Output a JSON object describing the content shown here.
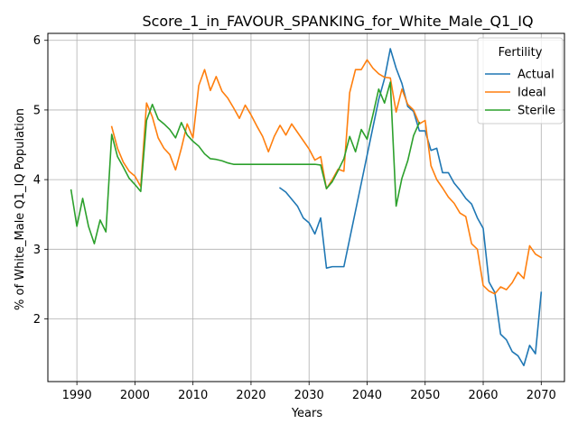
{
  "chart_data": {
    "type": "line",
    "title": "Score_1_in_FAVOUR_SPANKING_for_White_Male_Q1_IQ",
    "xlabel": "Years",
    "ylabel": "% of White_Male Q1_IQ Population",
    "xlim": [
      1985,
      2074
    ],
    "ylim": [
      1.1,
      6.1
    ],
    "xticks": [
      1990,
      2000,
      2010,
      2020,
      2030,
      2040,
      2050,
      2060,
      2070
    ],
    "yticks": [
      2,
      3,
      4,
      5,
      6
    ],
    "grid": true,
    "legend": {
      "title": "Fertility",
      "placement": "top-right"
    },
    "series": [
      {
        "name": "Actual",
        "color": "#1f77b4",
        "points": [
          [
            2025,
            3.88
          ],
          [
            2026,
            3.82
          ],
          [
            2027,
            3.72
          ],
          [
            2028,
            3.62
          ],
          [
            2029,
            3.45
          ],
          [
            2030,
            3.38
          ],
          [
            2031,
            3.22
          ],
          [
            2032,
            3.45
          ],
          [
            2033,
            2.73
          ],
          [
            2034,
            2.75
          ],
          [
            2035,
            2.75
          ],
          [
            2036,
            2.75
          ],
          [
            2037,
            3.15
          ],
          [
            2038,
            3.55
          ],
          [
            2039,
            3.95
          ],
          [
            2040,
            4.35
          ],
          [
            2041,
            4.75
          ],
          [
            2042,
            5.15
          ],
          [
            2043,
            5.45
          ],
          [
            2044,
            5.88
          ],
          [
            2045,
            5.6
          ],
          [
            2046,
            5.38
          ],
          [
            2047,
            5.05
          ],
          [
            2048,
            4.98
          ],
          [
            2049,
            4.7
          ],
          [
            2050,
            4.7
          ],
          [
            2051,
            4.42
          ],
          [
            2052,
            4.45
          ],
          [
            2053,
            4.1
          ],
          [
            2054,
            4.1
          ],
          [
            2055,
            3.95
          ],
          [
            2056,
            3.85
          ],
          [
            2057,
            3.73
          ],
          [
            2058,
            3.65
          ],
          [
            2059,
            3.45
          ],
          [
            2060,
            3.3
          ],
          [
            2061,
            2.53
          ],
          [
            2062,
            2.38
          ],
          [
            2063,
            1.78
          ],
          [
            2064,
            1.7
          ],
          [
            2065,
            1.53
          ],
          [
            2066,
            1.47
          ],
          [
            2067,
            1.33
          ],
          [
            2068,
            1.62
          ],
          [
            2069,
            1.5
          ],
          [
            2070,
            2.38
          ]
        ]
      },
      {
        "name": "Ideal",
        "color": "#ff7f0e",
        "points": [
          [
            1996,
            4.76
          ],
          [
            1997,
            4.45
          ],
          [
            1998,
            4.25
          ],
          [
            1999,
            4.12
          ],
          [
            2000,
            4.05
          ],
          [
            2001,
            3.9
          ],
          [
            2002,
            5.1
          ],
          [
            2003,
            4.9
          ],
          [
            2004,
            4.6
          ],
          [
            2005,
            4.45
          ],
          [
            2006,
            4.36
          ],
          [
            2007,
            4.14
          ],
          [
            2008,
            4.45
          ],
          [
            2009,
            4.8
          ],
          [
            2010,
            4.6
          ],
          [
            2011,
            5.35
          ],
          [
            2012,
            5.58
          ],
          [
            2013,
            5.28
          ],
          [
            2014,
            5.48
          ],
          [
            2015,
            5.27
          ],
          [
            2016,
            5.17
          ],
          [
            2017,
            5.03
          ],
          [
            2018,
            4.88
          ],
          [
            2019,
            5.07
          ],
          [
            2020,
            4.93
          ],
          [
            2021,
            4.77
          ],
          [
            2022,
            4.62
          ],
          [
            2023,
            4.4
          ],
          [
            2024,
            4.62
          ],
          [
            2025,
            4.78
          ],
          [
            2026,
            4.64
          ],
          [
            2027,
            4.8
          ],
          [
            2028,
            4.68
          ],
          [
            2029,
            4.56
          ],
          [
            2030,
            4.44
          ],
          [
            2031,
            4.28
          ],
          [
            2032,
            4.33
          ],
          [
            2033,
            3.87
          ],
          [
            2034,
            4.0
          ],
          [
            2035,
            4.15
          ],
          [
            2036,
            4.12
          ],
          [
            2037,
            5.25
          ],
          [
            2038,
            5.58
          ],
          [
            2039,
            5.58
          ],
          [
            2040,
            5.72
          ],
          [
            2041,
            5.6
          ],
          [
            2042,
            5.52
          ],
          [
            2043,
            5.47
          ],
          [
            2044,
            5.46
          ],
          [
            2045,
            4.97
          ],
          [
            2046,
            5.3
          ],
          [
            2047,
            5.08
          ],
          [
            2048,
            5.0
          ],
          [
            2049,
            4.8
          ],
          [
            2050,
            4.85
          ],
          [
            2051,
            4.2
          ],
          [
            2052,
            4.0
          ],
          [
            2053,
            3.88
          ],
          [
            2054,
            3.75
          ],
          [
            2055,
            3.66
          ],
          [
            2056,
            3.52
          ],
          [
            2057,
            3.47
          ],
          [
            2058,
            3.08
          ],
          [
            2059,
            3.0
          ],
          [
            2060,
            2.48
          ],
          [
            2061,
            2.4
          ],
          [
            2062,
            2.36
          ],
          [
            2063,
            2.46
          ],
          [
            2064,
            2.42
          ],
          [
            2065,
            2.52
          ],
          [
            2066,
            2.67
          ],
          [
            2067,
            2.58
          ],
          [
            2068,
            3.05
          ],
          [
            2069,
            2.93
          ],
          [
            2070,
            2.88
          ]
        ]
      },
      {
        "name": "Sterile",
        "color": "#2ca02c",
        "points": [
          [
            1989,
            3.85
          ],
          [
            1990,
            3.33
          ],
          [
            1991,
            3.73
          ],
          [
            1992,
            3.33
          ],
          [
            1993,
            3.08
          ],
          [
            1994,
            3.42
          ],
          [
            1995,
            3.25
          ],
          [
            1996,
            4.65
          ],
          [
            1997,
            4.33
          ],
          [
            1998,
            4.18
          ],
          [
            1999,
            4.02
          ],
          [
            2000,
            3.93
          ],
          [
            2001,
            3.83
          ],
          [
            2002,
            4.85
          ],
          [
            2003,
            5.08
          ],
          [
            2004,
            4.87
          ],
          [
            2005,
            4.8
          ],
          [
            2006,
            4.72
          ],
          [
            2007,
            4.6
          ],
          [
            2008,
            4.82
          ],
          [
            2009,
            4.64
          ],
          [
            2010,
            4.55
          ],
          [
            2011,
            4.48
          ],
          [
            2012,
            4.37
          ],
          [
            2013,
            4.3
          ],
          [
            2014,
            4.29
          ],
          [
            2015,
            4.27
          ],
          [
            2016,
            4.24
          ],
          [
            2017,
            4.22
          ],
          [
            2018,
            4.22
          ],
          [
            2019,
            4.22
          ],
          [
            2020,
            4.22
          ],
          [
            2021,
            4.22
          ],
          [
            2022,
            4.22
          ],
          [
            2023,
            4.22
          ],
          [
            2024,
            4.22
          ],
          [
            2025,
            4.22
          ],
          [
            2026,
            4.22
          ],
          [
            2027,
            4.22
          ],
          [
            2028,
            4.22
          ],
          [
            2029,
            4.22
          ],
          [
            2030,
            4.22
          ],
          [
            2031,
            4.22
          ],
          [
            2032,
            4.21
          ],
          [
            2033,
            3.87
          ],
          [
            2034,
            3.97
          ],
          [
            2035,
            4.13
          ],
          [
            2036,
            4.3
          ],
          [
            2037,
            4.62
          ],
          [
            2038,
            4.4
          ],
          [
            2039,
            4.72
          ],
          [
            2040,
            4.58
          ],
          [
            2041,
            4.93
          ],
          [
            2042,
            5.3
          ],
          [
            2043,
            5.1
          ],
          [
            2044,
            5.4
          ],
          [
            2045,
            3.62
          ],
          [
            2046,
            4.02
          ],
          [
            2047,
            4.27
          ],
          [
            2048,
            4.63
          ],
          [
            2049,
            4.82
          ]
        ]
      }
    ]
  }
}
